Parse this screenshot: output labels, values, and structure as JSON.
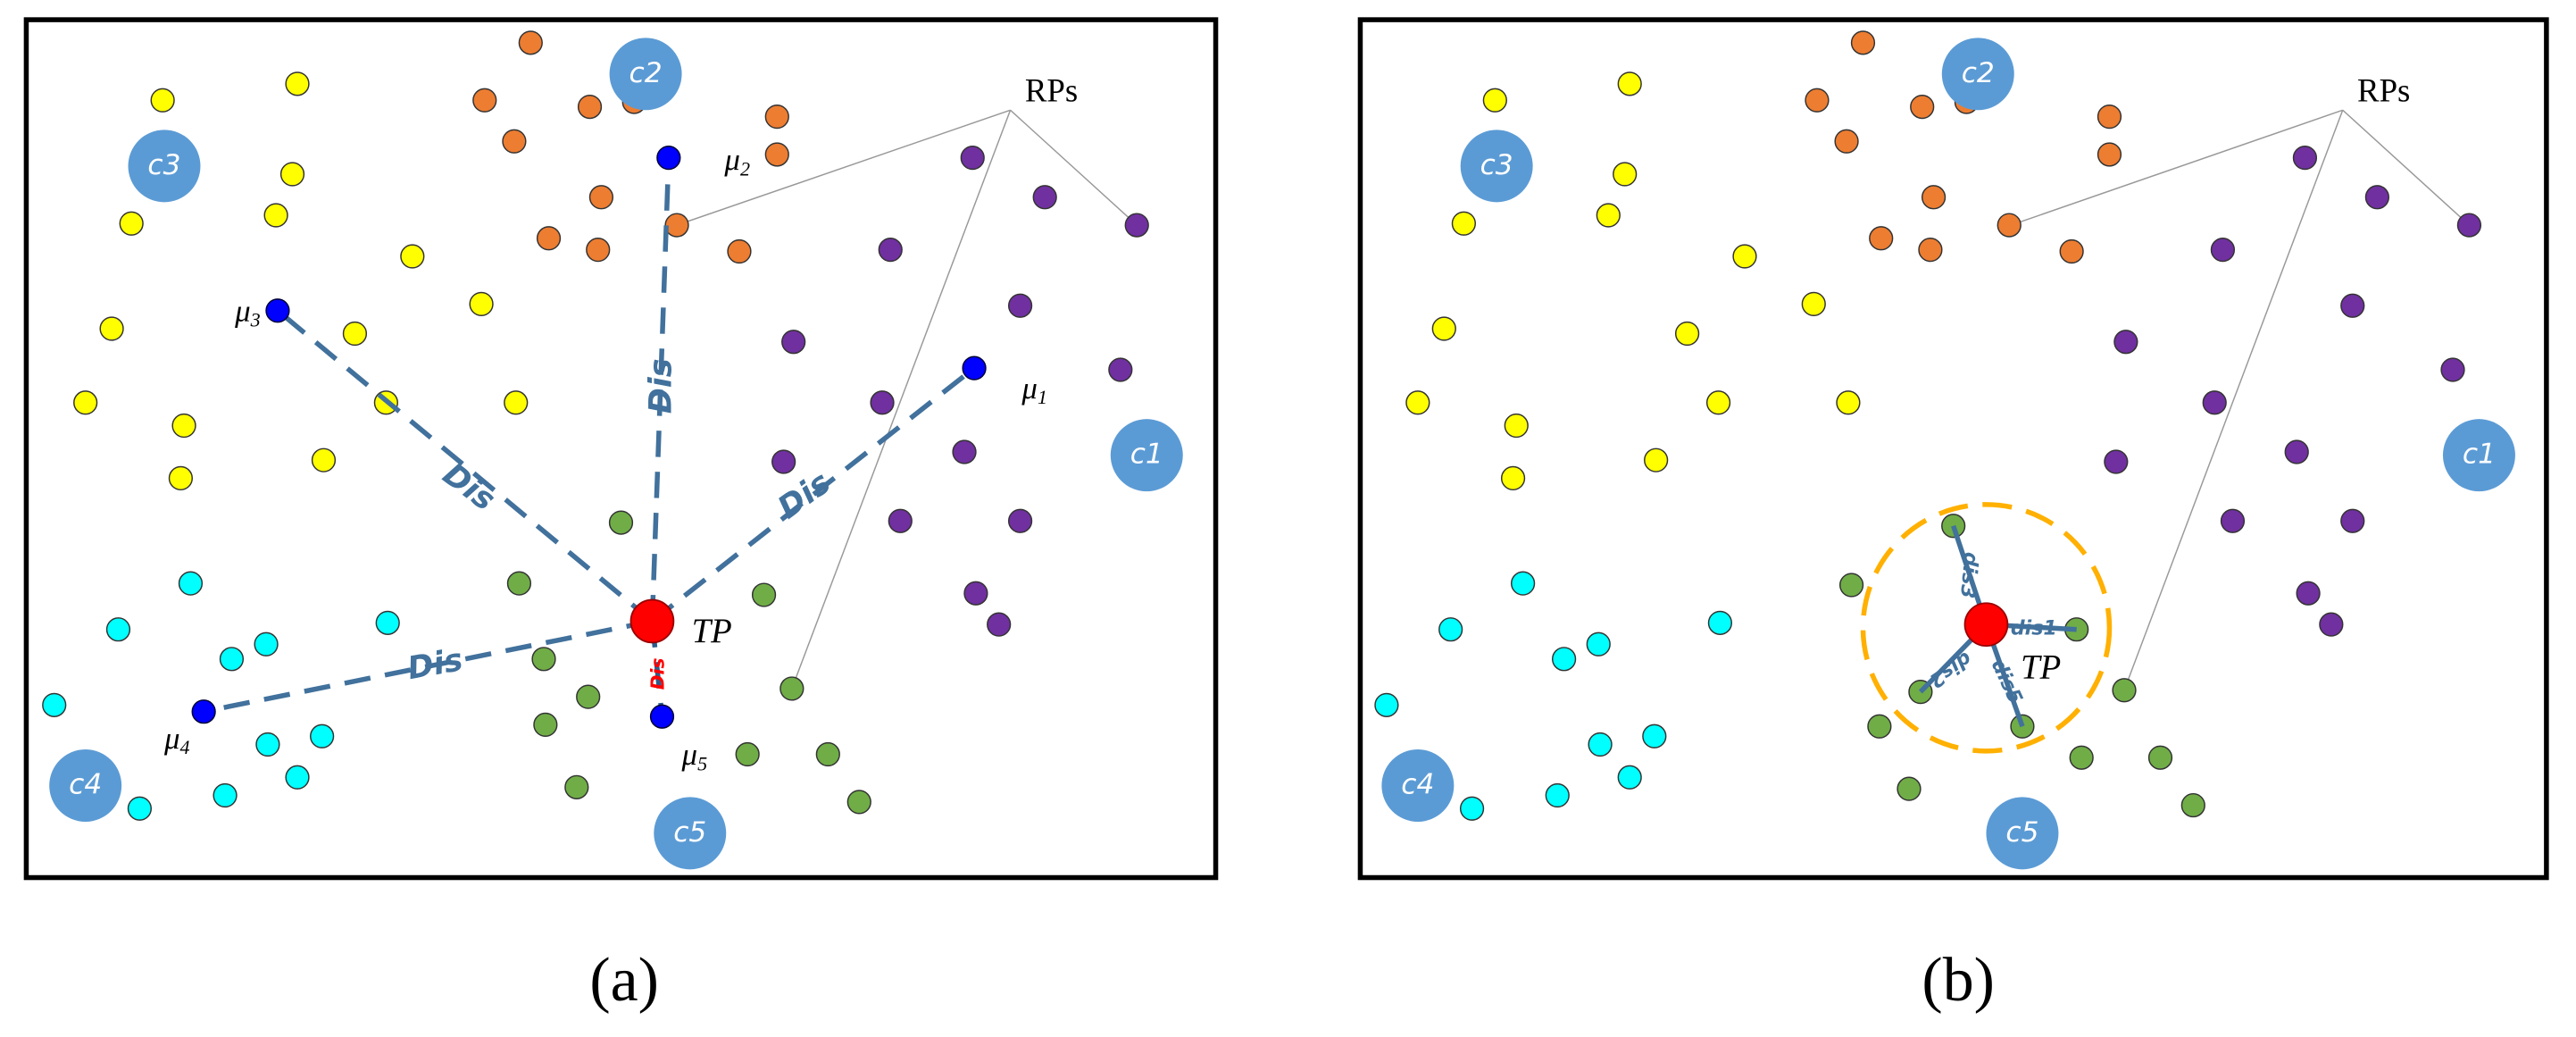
{
  "panel_a": {
    "caption": "(a)",
    "clusters": [
      "c1",
      "c2",
      "c3",
      "c4",
      "c5"
    ],
    "rps_label": "RPs",
    "tp_label": "TP",
    "mu_labels": [
      {
        "symbol": "μ",
        "sub": "1"
      },
      {
        "symbol": "μ",
        "sub": "2"
      },
      {
        "symbol": "μ",
        "sub": "3"
      },
      {
        "symbol": "μ",
        "sub": "4"
      },
      {
        "symbol": "μ",
        "sub": "5"
      }
    ],
    "distance_labels": [
      "Dis",
      "Dis",
      "Dis",
      "Dis",
      "Dis"
    ]
  },
  "panel_b": {
    "caption": "(b)",
    "clusters": [
      "c1",
      "c2",
      "c3",
      "c4",
      "c5"
    ],
    "rps_label": "RPs",
    "tp_label": "TP",
    "distance_labels": [
      "dis1",
      "dis3",
      "dis5",
      "dis2"
    ]
  }
}
